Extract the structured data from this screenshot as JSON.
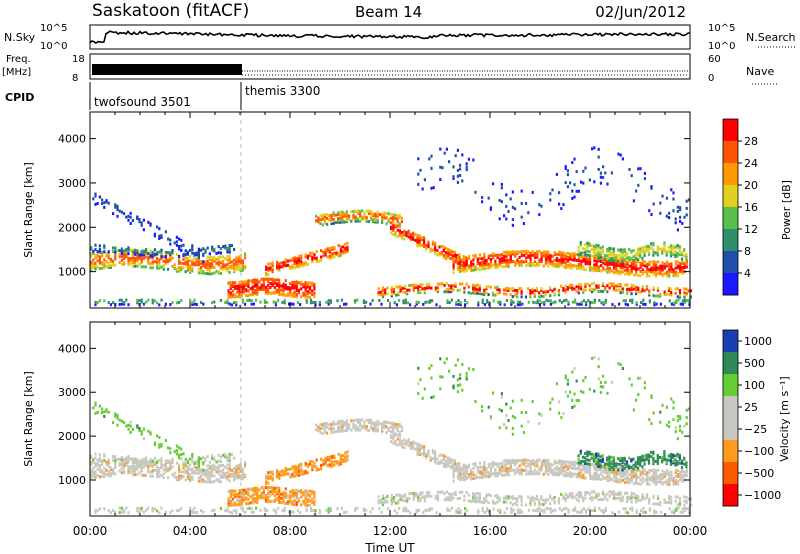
{
  "header": {
    "station": "Saskatoon (fitACF)",
    "beam": "Beam 14",
    "date": "02/Jun/2012"
  },
  "colors": {
    "power_scale": [
      "#1a1aff",
      "#1f4fa8",
      "#2f8f6a",
      "#5abf4a",
      "#e0d020",
      "#ff9a00",
      "#ff5500",
      "#ff0000"
    ],
    "velocity_scale": [
      "#ff0000",
      "#ff5a00",
      "#ff9a1a",
      "#c8c8c0",
      "#c8c8c0",
      "#66cc33",
      "#2f8a55",
      "#1a3fb0"
    ]
  },
  "chart_data": [
    {
      "type": "line",
      "name": "noise-panel",
      "left_label": "N.Sky",
      "right_label": "N.Search",
      "left_ticks": [
        "10^5",
        "10^0"
      ],
      "right_ticks": [
        "10^5",
        "10^0"
      ]
    },
    {
      "type": "bar",
      "name": "frequency-panel",
      "left_label": "Freq.",
      "left_unit": "[MHz]",
      "right_label": "Nave",
      "left_ticks": [
        "18",
        "8"
      ],
      "right_ticks": [
        "60",
        "0"
      ]
    },
    {
      "type": "table",
      "name": "cpid-panel",
      "label": "CPID",
      "modes": [
        {
          "name": "twofsound 3501",
          "start_hour": 0
        },
        {
          "name": "themis 3300",
          "start_hour": 6
        }
      ]
    },
    {
      "type": "heatmap",
      "name": "power-panel",
      "ylabel": "Slant Range [km]",
      "yticks": [
        "4000",
        "3000",
        "2000",
        "1000"
      ],
      "ylim": [
        180,
        4600
      ],
      "xlim_hours": [
        0,
        24
      ],
      "colorbar_label": "Power [dB]",
      "colorbar_ticks": [
        "28",
        "24",
        "20",
        "16",
        "12",
        "8",
        "4"
      ]
    },
    {
      "type": "heatmap",
      "name": "velocity-panel",
      "ylabel": "Slant Range [km]",
      "yticks": [
        "4000",
        "3000",
        "2000",
        "1000"
      ],
      "ylim": [
        180,
        4600
      ],
      "xlim_hours": [
        0,
        24
      ],
      "colorbar_label": "Velocity [m s⁻¹]",
      "colorbar_ticks": [
        "1000",
        "500",
        "100",
        "25",
        "−25",
        "−100",
        "−500",
        "−1000"
      ]
    }
  ],
  "x_axis": {
    "label": "Time UT",
    "ticks": [
      "00:00",
      "04:00",
      "08:00",
      "12:00",
      "16:00",
      "20:00",
      "00:00"
    ]
  }
}
